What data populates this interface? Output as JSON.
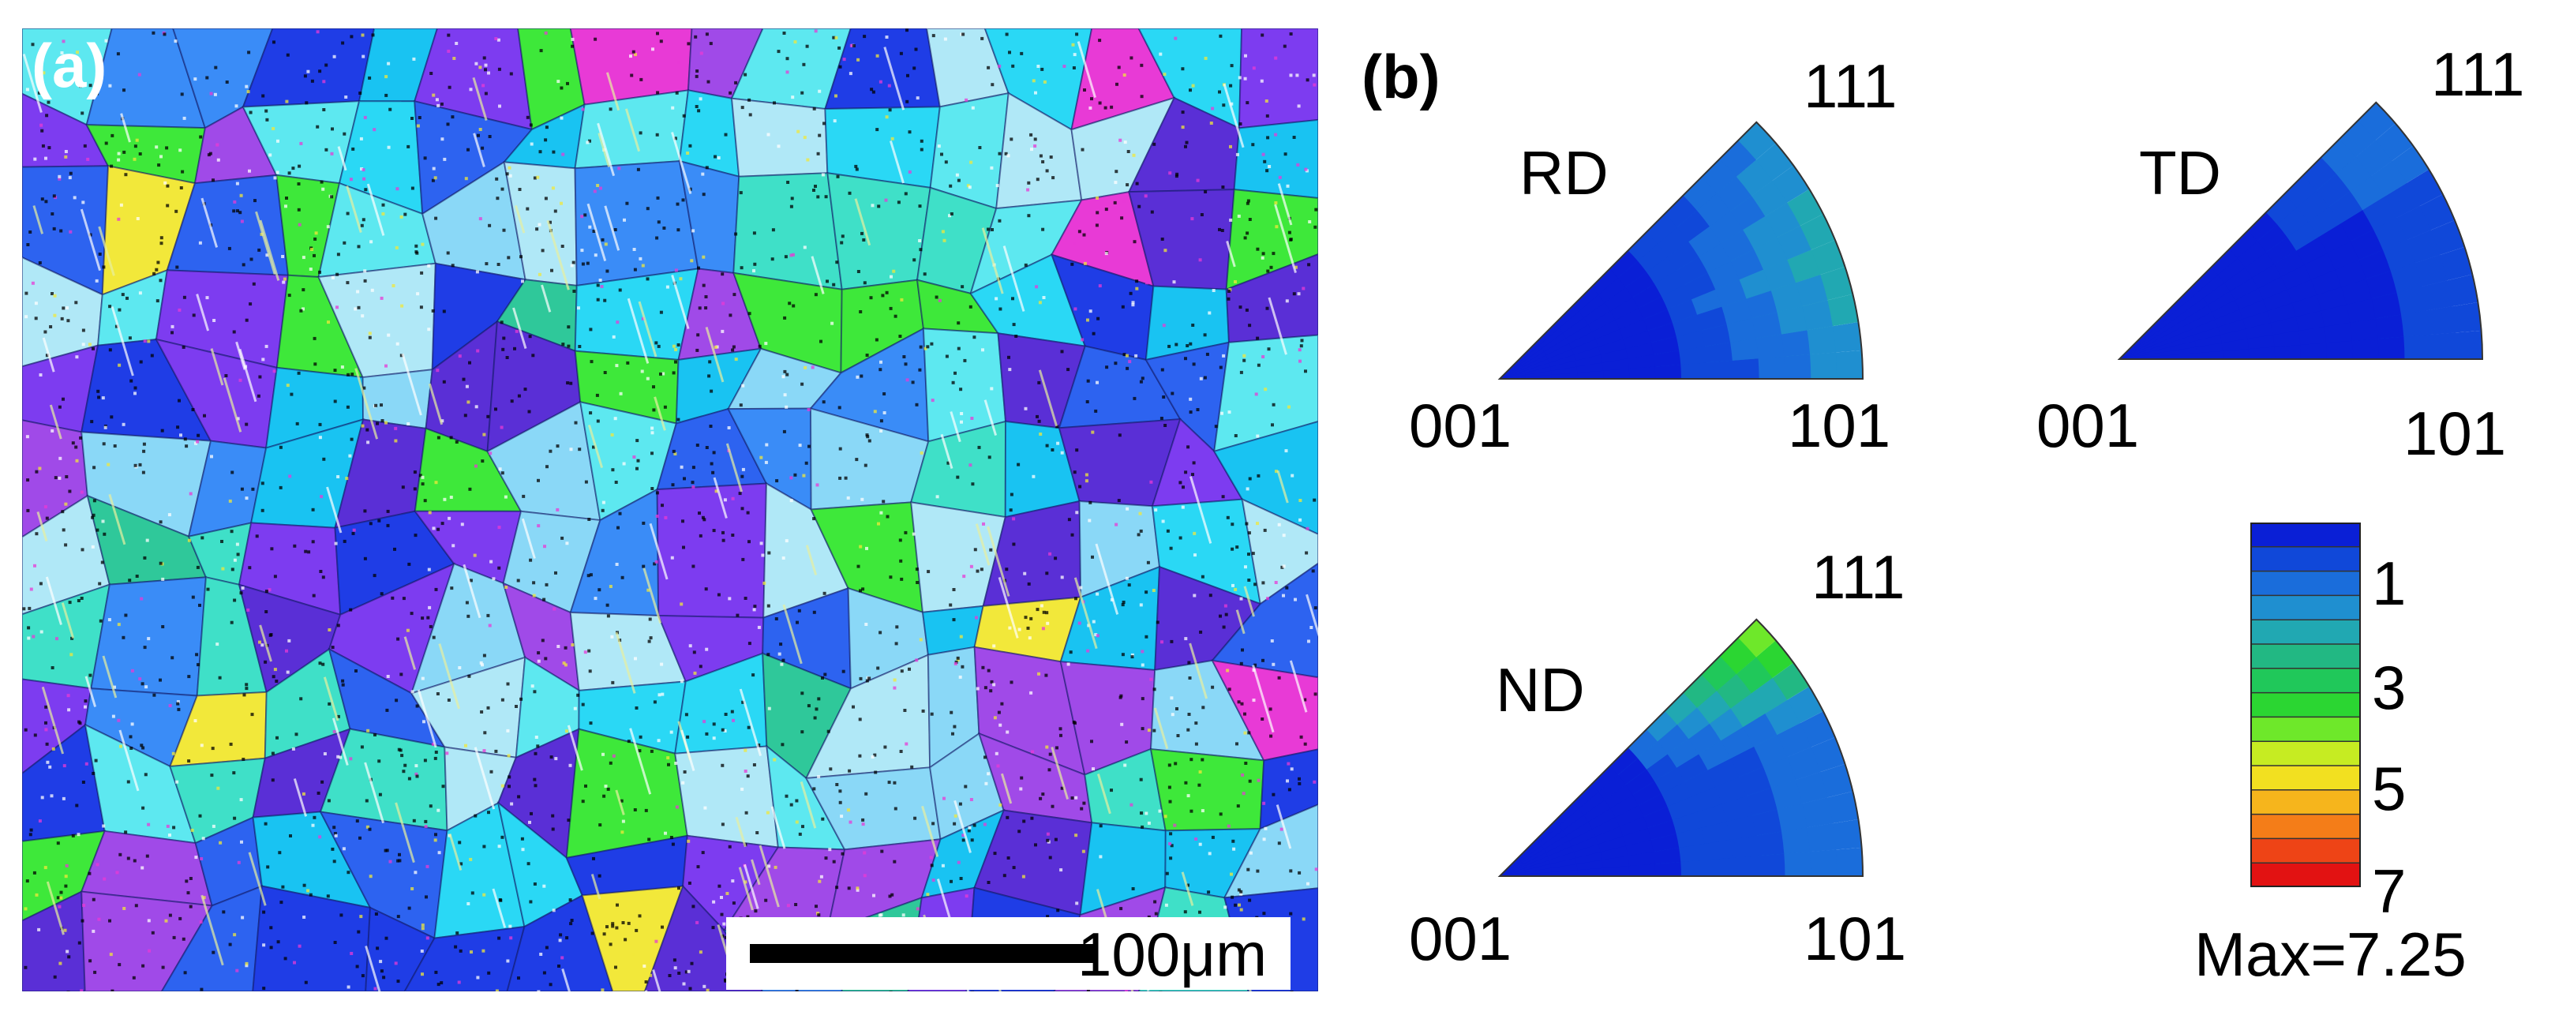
{
  "panel_a": {
    "label": "(a)",
    "scale_bar": {
      "text": "100μm"
    },
    "grain_colors": [
      "#1f3de6",
      "#2d63f0",
      "#3a8cf7",
      "#19c3f2",
      "#2ad8f5",
      "#7d3cf0",
      "#a04ae8",
      "#5a2fd6",
      "#3fe0c8",
      "#5de8f0",
      "#8ad8f7",
      "#b0e8f7"
    ],
    "accent_grains": {
      "green": "#3ee83a",
      "yellow": "#f2e83a",
      "magenta": "#e83ad6",
      "teal": "#2fc89a"
    }
  },
  "panel_b": {
    "label": "(b)",
    "triangles": [
      {
        "name": "RD",
        "corners": [
          "001",
          "101",
          "111"
        ]
      },
      {
        "name": "TD",
        "corners": [
          "001",
          "101",
          "111"
        ]
      },
      {
        "name": "ND",
        "corners": [
          "001",
          "101",
          "111"
        ]
      }
    ],
    "colorbar": {
      "ticks": [
        "1",
        "3",
        "5",
        "7"
      ],
      "max_text": "Max=7.25",
      "max_value": 7.25,
      "colors": [
        "#0a1fd6",
        "#1048d9",
        "#1a6ddb",
        "#1f8fd0",
        "#21a8b2",
        "#22b883",
        "#20c85a",
        "#2bd632",
        "#6ee82a",
        "#c6ec22",
        "#f2e020",
        "#f6b51c",
        "#f47d18",
        "#ee4416",
        "#e21212"
      ]
    }
  }
}
